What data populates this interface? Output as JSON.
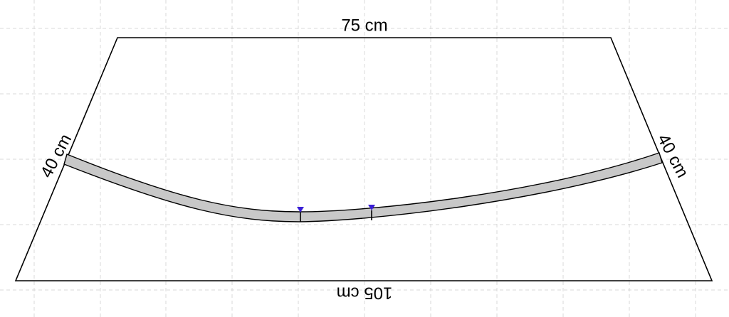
{
  "edges": {
    "top": {
      "label": "75 cm"
    },
    "left": {
      "label": "40 cm"
    },
    "right": {
      "label": "40 cm"
    },
    "bottom": {
      "label": "105 cm"
    }
  }
}
